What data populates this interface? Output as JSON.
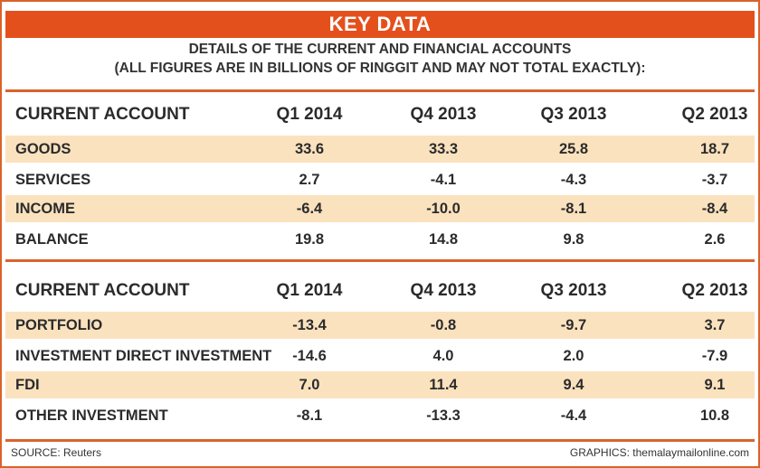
{
  "title": "KEY DATA",
  "subtitle_line1": "DETAILS OF THE CURRENT AND FINANCIAL ACCOUNTS",
  "subtitle_line2": "(ALL FIGURES ARE IN BILLIONS OF RINGGIT AND MAY NOT TOTAL EXACTLY):",
  "tables": [
    {
      "headers": [
        "CURRENT ACCOUNT",
        "Q1 2014",
        "Q4 2013",
        "Q3 2013",
        "Q2 2013"
      ],
      "rows": [
        [
          "GOODS",
          "33.6",
          "33.3",
          "25.8",
          "18.7"
        ],
        [
          "SERVICES",
          "2.7",
          "-4.1",
          "-4.3",
          "-3.7"
        ],
        [
          "INCOME",
          "-6.4",
          "-10.0",
          "-8.1",
          "-8.4"
        ],
        [
          "BALANCE",
          "19.8",
          "14.8",
          "9.8",
          "2.6"
        ]
      ]
    },
    {
      "headers": [
        "CURRENT ACCOUNT",
        "Q1 2014",
        "Q4 2013",
        "Q3 2013",
        "Q2 2013"
      ],
      "rows": [
        [
          "PORTFOLIO",
          "-13.4",
          "-0.8",
          "-9.7",
          "3.7"
        ],
        [
          "INVESTMENT DIRECT INVESTMENT",
          "-14.6",
          "4.0",
          "2.0",
          "-7.9"
        ],
        [
          "FDI",
          "7.0",
          "11.4",
          "9.4",
          "9.1"
        ],
        [
          "OTHER INVESTMENT",
          "-8.1",
          "-13.3",
          "-4.4",
          "10.8"
        ]
      ]
    }
  ],
  "footer": {
    "source": "SOURCE: Reuters",
    "credit": "GRAPHICS: themalaymailonline.com"
  },
  "colors": {
    "accent": "#e4501c",
    "band": "#fbe2be"
  }
}
